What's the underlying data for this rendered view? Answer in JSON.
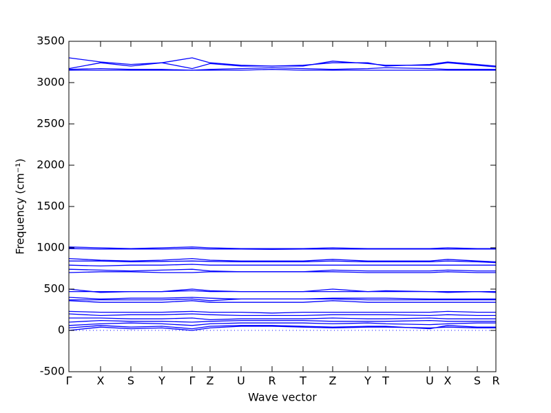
{
  "chart_data": {
    "type": "line",
    "xlabel": "Wave vector",
    "ylabel": "Frequency (cm⁻¹)",
    "x": [
      0,
      0.46,
      0.9,
      1.35,
      1.79,
      2.05,
      2.5,
      2.95,
      3.4,
      3.83,
      4.34,
      4.6,
      5.24,
      5.5,
      5.93,
      6.2
    ],
    "xlim": [
      0,
      6.2
    ],
    "xticks": [
      {
        "value": 0,
        "label": "Γ"
      },
      {
        "value": 0.46,
        "label": "X"
      },
      {
        "value": 0.9,
        "label": "S"
      },
      {
        "value": 1.35,
        "label": "Y"
      },
      {
        "value": 1.79,
        "label": "Γ"
      },
      {
        "value": 2.05,
        "label": "Z"
      },
      {
        "value": 2.5,
        "label": "U"
      },
      {
        "value": 2.95,
        "label": "R"
      },
      {
        "value": 3.4,
        "label": "T"
      },
      {
        "value": 3.83,
        "label": "Z"
      },
      {
        "value": 4.34,
        "label": "Y"
      },
      {
        "value": 4.6,
        "label": "T"
      },
      {
        "value": 5.24,
        "label": "U"
      },
      {
        "value": 5.5,
        "label": "X"
      },
      {
        "value": 5.93,
        "label": "S"
      },
      {
        "value": 6.2,
        "label": "R"
      }
    ],
    "ylim": [
      -500,
      3500
    ],
    "yticks": [
      -500,
      0,
      500,
      1000,
      1500,
      2000,
      2500,
      3000,
      3500
    ],
    "series": [
      {
        "color": "#0000ff",
        "values": [
          3300,
          3250,
          3220,
          3240,
          3300,
          3240,
          3210,
          3200,
          3210,
          3240,
          3240,
          3200,
          3220,
          3250,
          3220,
          3200
        ]
      },
      {
        "color": "#0000ff",
        "values": [
          3170,
          3240,
          3200,
          3240,
          3170,
          3230,
          3200,
          3200,
          3200,
          3260,
          3230,
          3210,
          3210,
          3240,
          3210,
          3190
        ]
      },
      {
        "color": "#0000ff",
        "values": [
          3160,
          3170,
          3160,
          3160,
          3150,
          3160,
          3170,
          3180,
          3170,
          3160,
          3170,
          3180,
          3170,
          3160,
          3160,
          3160
        ]
      },
      {
        "color": "#0000ff",
        "values": [
          3150,
          3150,
          3150,
          3150,
          3150,
          3150,
          3150,
          3160,
          3150,
          3150,
          3150,
          3150,
          3150,
          3150,
          3150,
          3150
        ]
      },
      {
        "color": "#0000ff",
        "values": [
          1010,
          1000,
          990,
          1000,
          1010,
          1000,
          990,
          990,
          990,
          1000,
          990,
          990,
          990,
          1000,
          990,
          990
        ]
      },
      {
        "color": "#0000ff",
        "values": [
          990,
          985,
          985,
          985,
          990,
          985,
          985,
          980,
          985,
          985,
          985,
          985,
          985,
          985,
          985,
          985
        ]
      },
      {
        "color": "#0000ff",
        "values": [
          870,
          850,
          840,
          850,
          870,
          850,
          840,
          840,
          840,
          860,
          840,
          840,
          840,
          860,
          840,
          830
        ]
      },
      {
        "color": "#0000ff",
        "values": [
          840,
          840,
          830,
          835,
          840,
          835,
          830,
          830,
          830,
          840,
          830,
          830,
          830,
          840,
          830,
          820
        ]
      },
      {
        "color": "#0000ff",
        "values": [
          790,
          780,
          790,
          790,
          800,
          790,
          790,
          790,
          790,
          790,
          790,
          790,
          790,
          790,
          790,
          790
        ]
      },
      {
        "color": "#0000ff",
        "values": [
          740,
          730,
          720,
          730,
          740,
          720,
          710,
          710,
          710,
          730,
          720,
          720,
          720,
          730,
          720,
          720
        ]
      },
      {
        "color": "#0000ff",
        "values": [
          700,
          710,
          710,
          700,
          700,
          710,
          710,
          710,
          710,
          710,
          700,
          700,
          700,
          710,
          700,
          700
        ]
      },
      {
        "color": "#0000ff",
        "values": [
          500,
          460,
          470,
          470,
          500,
          480,
          470,
          470,
          470,
          500,
          470,
          480,
          470,
          460,
          470,
          460
        ]
      },
      {
        "color": "#0000ff",
        "values": [
          470,
          470,
          470,
          470,
          480,
          470,
          470,
          470,
          470,
          470,
          470,
          470,
          470,
          470,
          470,
          470
        ]
      },
      {
        "color": "#0000ff",
        "values": [
          400,
          380,
          390,
          390,
          400,
          390,
          380,
          380,
          380,
          390,
          390,
          390,
          380,
          380,
          380,
          380
        ]
      },
      {
        "color": "#0000ff",
        "values": [
          370,
          370,
          370,
          370,
          380,
          360,
          380,
          380,
          380,
          380,
          370,
          370,
          370,
          370,
          370,
          370
        ]
      },
      {
        "color": "#0000ff",
        "values": [
          360,
          340,
          340,
          340,
          360,
          340,
          340,
          340,
          340,
          360,
          340,
          340,
          340,
          340,
          340,
          340
        ]
      },
      {
        "color": "#0000ff",
        "values": [
          230,
          220,
          220,
          220,
          230,
          220,
          220,
          210,
          220,
          220,
          220,
          220,
          220,
          230,
          220,
          220
        ]
      },
      {
        "color": "#0000ff",
        "values": [
          200,
          180,
          190,
          190,
          200,
          190,
          180,
          180,
          180,
          190,
          190,
          190,
          180,
          190,
          180,
          180
        ]
      },
      {
        "color": "#0000ff",
        "values": [
          150,
          150,
          140,
          140,
          150,
          130,
          140,
          140,
          140,
          150,
          140,
          140,
          150,
          140,
          140,
          140
        ]
      },
      {
        "color": "#0000ff",
        "values": [
          100,
          120,
          110,
          110,
          100,
          110,
          120,
          120,
          120,
          110,
          110,
          110,
          120,
          110,
          110,
          110
        ]
      },
      {
        "color": "#0000ff",
        "values": [
          60,
          80,
          90,
          80,
          60,
          80,
          90,
          90,
          90,
          80,
          90,
          80,
          70,
          80,
          90,
          90
        ]
      },
      {
        "color": "#0000ff",
        "values": [
          30,
          60,
          40,
          50,
          20,
          50,
          60,
          60,
          50,
          40,
          50,
          50,
          20,
          60,
          40,
          40
        ]
      },
      {
        "color": "#0000ff",
        "values": [
          0,
          40,
          20,
          30,
          0,
          30,
          50,
          50,
          40,
          30,
          40,
          40,
          30,
          40,
          30,
          30
        ]
      }
    ]
  }
}
